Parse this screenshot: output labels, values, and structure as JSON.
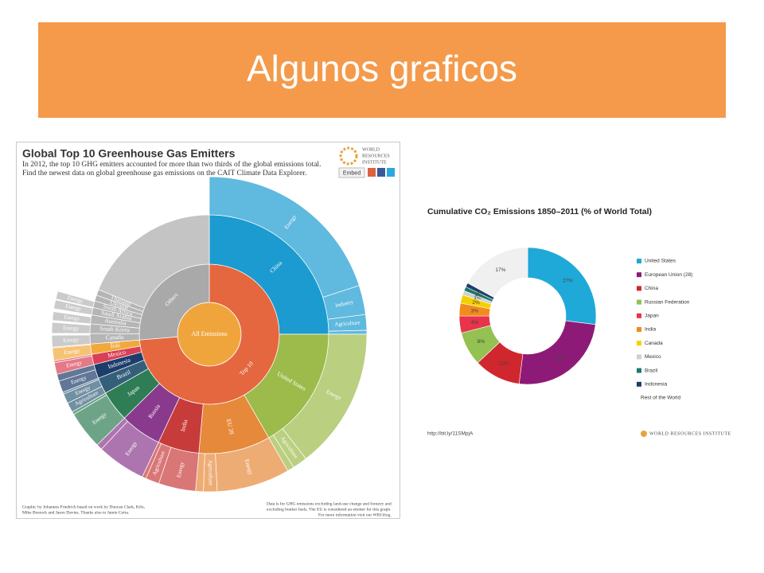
{
  "slide": {
    "title": "Algunos graficos"
  },
  "chart_data": [
    {
      "type": "sunburst",
      "title": "Global Top 10 Greenhouse Gas Emitters",
      "subtitle": [
        "In 2012, the top 10 GHG emitters accounted for more than two thirds of the global emissions total.",
        "Find the newest data on global greenhouse gas emissions on the CAIT Climate Data Explorer."
      ],
      "logo": [
        "WORLD",
        "RESOURCES",
        "INSTITUTE"
      ],
      "embed": "Embed",
      "notes_left": [
        "Graphic by Johannes Friedrich based on work by Duncan Clark, Kiln,",
        "Mike Bostock and Jason Davies. Thanks also to Jamie Cotta."
      ],
      "notes_right": [
        "Data is for GHG emissions excluding land-use change and forestry and",
        "excluding bunker fuels. The EU is considered an emitter for this graph.",
        "For more information visit our WRI blog."
      ],
      "root": {
        "name": "All Emissions",
        "value": 100,
        "color": "#f0a53c",
        "children": [
          {
            "name": "Top 10",
            "value": 73.7,
            "color": "#e5673f",
            "children": [
              {
                "name": "China",
                "value": 25,
                "color": "#1c9bd0",
                "children": [
                  {
                    "name": "Energy",
                    "value": 20
                  },
                  {
                    "name": "Industry",
                    "value": 3
                  },
                  {
                    "name": "Agriculture",
                    "value": 1.6
                  },
                  {
                    "name": null,
                    "value": 0.4
                  }
                ]
              },
              {
                "name": "United States",
                "value": 16.7,
                "color": "#9cbb4a",
                "children": [
                  {
                    "name": "Energy",
                    "value": 14.5
                  },
                  {
                    "name": "Agriculture",
                    "value": 1.5
                  },
                  {
                    "name": null,
                    "value": 0.7
                  }
                ]
              },
              {
                "name": "EU 28",
                "value": 9.7,
                "color": "#e6893a",
                "children": [
                  {
                    "name": "Energy",
                    "value": 7.5
                  },
                  {
                    "name": "Agriculture",
                    "value": 1.4
                  },
                  {
                    "name": null,
                    "value": 0.8
                  }
                ]
              },
              {
                "name": "India",
                "value": 5.6,
                "color": "#c83b3b",
                "children": [
                  {
                    "name": "Energy",
                    "value": 3.8
                  },
                  {
                    "name": "Agriculture",
                    "value": 1.4
                  },
                  {
                    "name": null,
                    "value": 0.4
                  }
                ]
              },
              {
                "name": "Russia",
                "value": 5.6,
                "color": "#8a3a8c",
                "children": [
                  {
                    "name": "Energy",
                    "value": 5.0
                  },
                  {
                    "name": null,
                    "value": 0.6
                  }
                ]
              },
              {
                "name": "Japan",
                "value": 4.2,
                "color": "#2f7d55",
                "children": [
                  {
                    "name": "Energy",
                    "value": 3.9
                  },
                  {
                    "name": null,
                    "value": 0.3
                  }
                ]
              },
              {
                "name": "Brazil",
                "value": 2.2,
                "color": "#345f7a",
                "children": [
                  {
                    "name": "Agriculture",
                    "value": 1.0
                  },
                  {
                    "name": "Energy",
                    "value": 1.0
                  },
                  {
                    "name": null,
                    "value": 0.2
                  }
                ]
              },
              {
                "name": "Indonesia",
                "value": 1.9,
                "color": "#1d3d6b",
                "children": [
                  {
                    "name": "Energy",
                    "value": 1.2
                  },
                  {
                    "name": null,
                    "value": 0.7
                  }
                ]
              },
              {
                "name": "Mexico",
                "value": 1.4,
                "color": "#d94055",
                "children": [
                  {
                    "name": "Energy",
                    "value": 1.2
                  },
                  {
                    "name": null,
                    "value": 0.2
                  }
                ]
              },
              {
                "name": "Iran",
                "value": 1.4,
                "color": "#f2a93b",
                "children": [
                  {
                    "name": "Energy",
                    "value": 1.3
                  },
                  {
                    "name": null,
                    "value": 0.1
                  }
                ]
              }
            ]
          },
          {
            "name": "Others",
            "value": 26.3,
            "color": "#a9a9a9",
            "children": [
              {
                "name": "Iran",
                "value": 0.0,
                "color": "#5bb5d5",
                "children": []
              },
              {
                "name": "Canada",
                "value": 1.4,
                "color": "#b5b5b5",
                "children": [
                  {
                    "name": "Energy",
                    "value": 1.2
                  }
                ]
              },
              {
                "name": "South Korea",
                "value": 1.3,
                "color": "#b5b5b5",
                "children": [
                  {
                    "name": "Energy",
                    "value": 1.1
                  }
                ]
              },
              {
                "name": "Australia",
                "value": 1.2,
                "color": "#b5b5b5",
                "children": [
                  {
                    "name": "Energy",
                    "value": 0.9
                  }
                ]
              },
              {
                "name": "Saudi Arabia",
                "value": 1.0,
                "color": "#b5b5b5",
                "children": [
                  {
                    "name": "Energy",
                    "value": 0.9
                  }
                ]
              },
              {
                "name": "South Africa",
                "value": 0.9,
                "color": "#b5b5b5",
                "children": [
                  {
                    "name": "Energy",
                    "value": 0.8
                  }
                ]
              },
              {
                "name": "Ukraine",
                "value": 0.8,
                "color": "#b5b5b5",
                "children": []
              },
              {
                "name": "Thailand",
                "value": 0.8,
                "color": "#b5b5b5",
                "children": []
              },
              {
                "name": null,
                "value": 18.9,
                "color": "#c4c4c4",
                "children": []
              }
            ]
          }
        ]
      }
    },
    {
      "type": "donut",
      "title": "Cumulative CO₂ Emissions 1850–2011 (% of World Total)",
      "categories": [
        "United States",
        "European Union (28)",
        "China",
        "Russian Federation",
        "Japan",
        "India",
        "Canada",
        "Mexico",
        "Brazil",
        "Indonesia",
        "Rest of the World"
      ],
      "values": [
        27,
        25,
        11,
        8,
        4,
        3,
        2,
        1,
        1,
        1,
        17
      ],
      "value_labels": [
        "27%",
        "25%",
        "11%",
        "8%",
        "4%",
        "3%",
        "2%",
        "1%",
        "1%",
        "1%",
        "17%"
      ],
      "colors": [
        "#1fa9d8",
        "#8e1a77",
        "#d0272e",
        "#93c152",
        "#e8334a",
        "#f28a1e",
        "#f5d000",
        "#cfcfcf",
        "#1b7a6b",
        "#1d3d6b",
        "#f0f0f0"
      ],
      "source": "http://bit.ly/11SMpjA",
      "logo": "WORLD RESOURCES INSTITUTE"
    }
  ]
}
